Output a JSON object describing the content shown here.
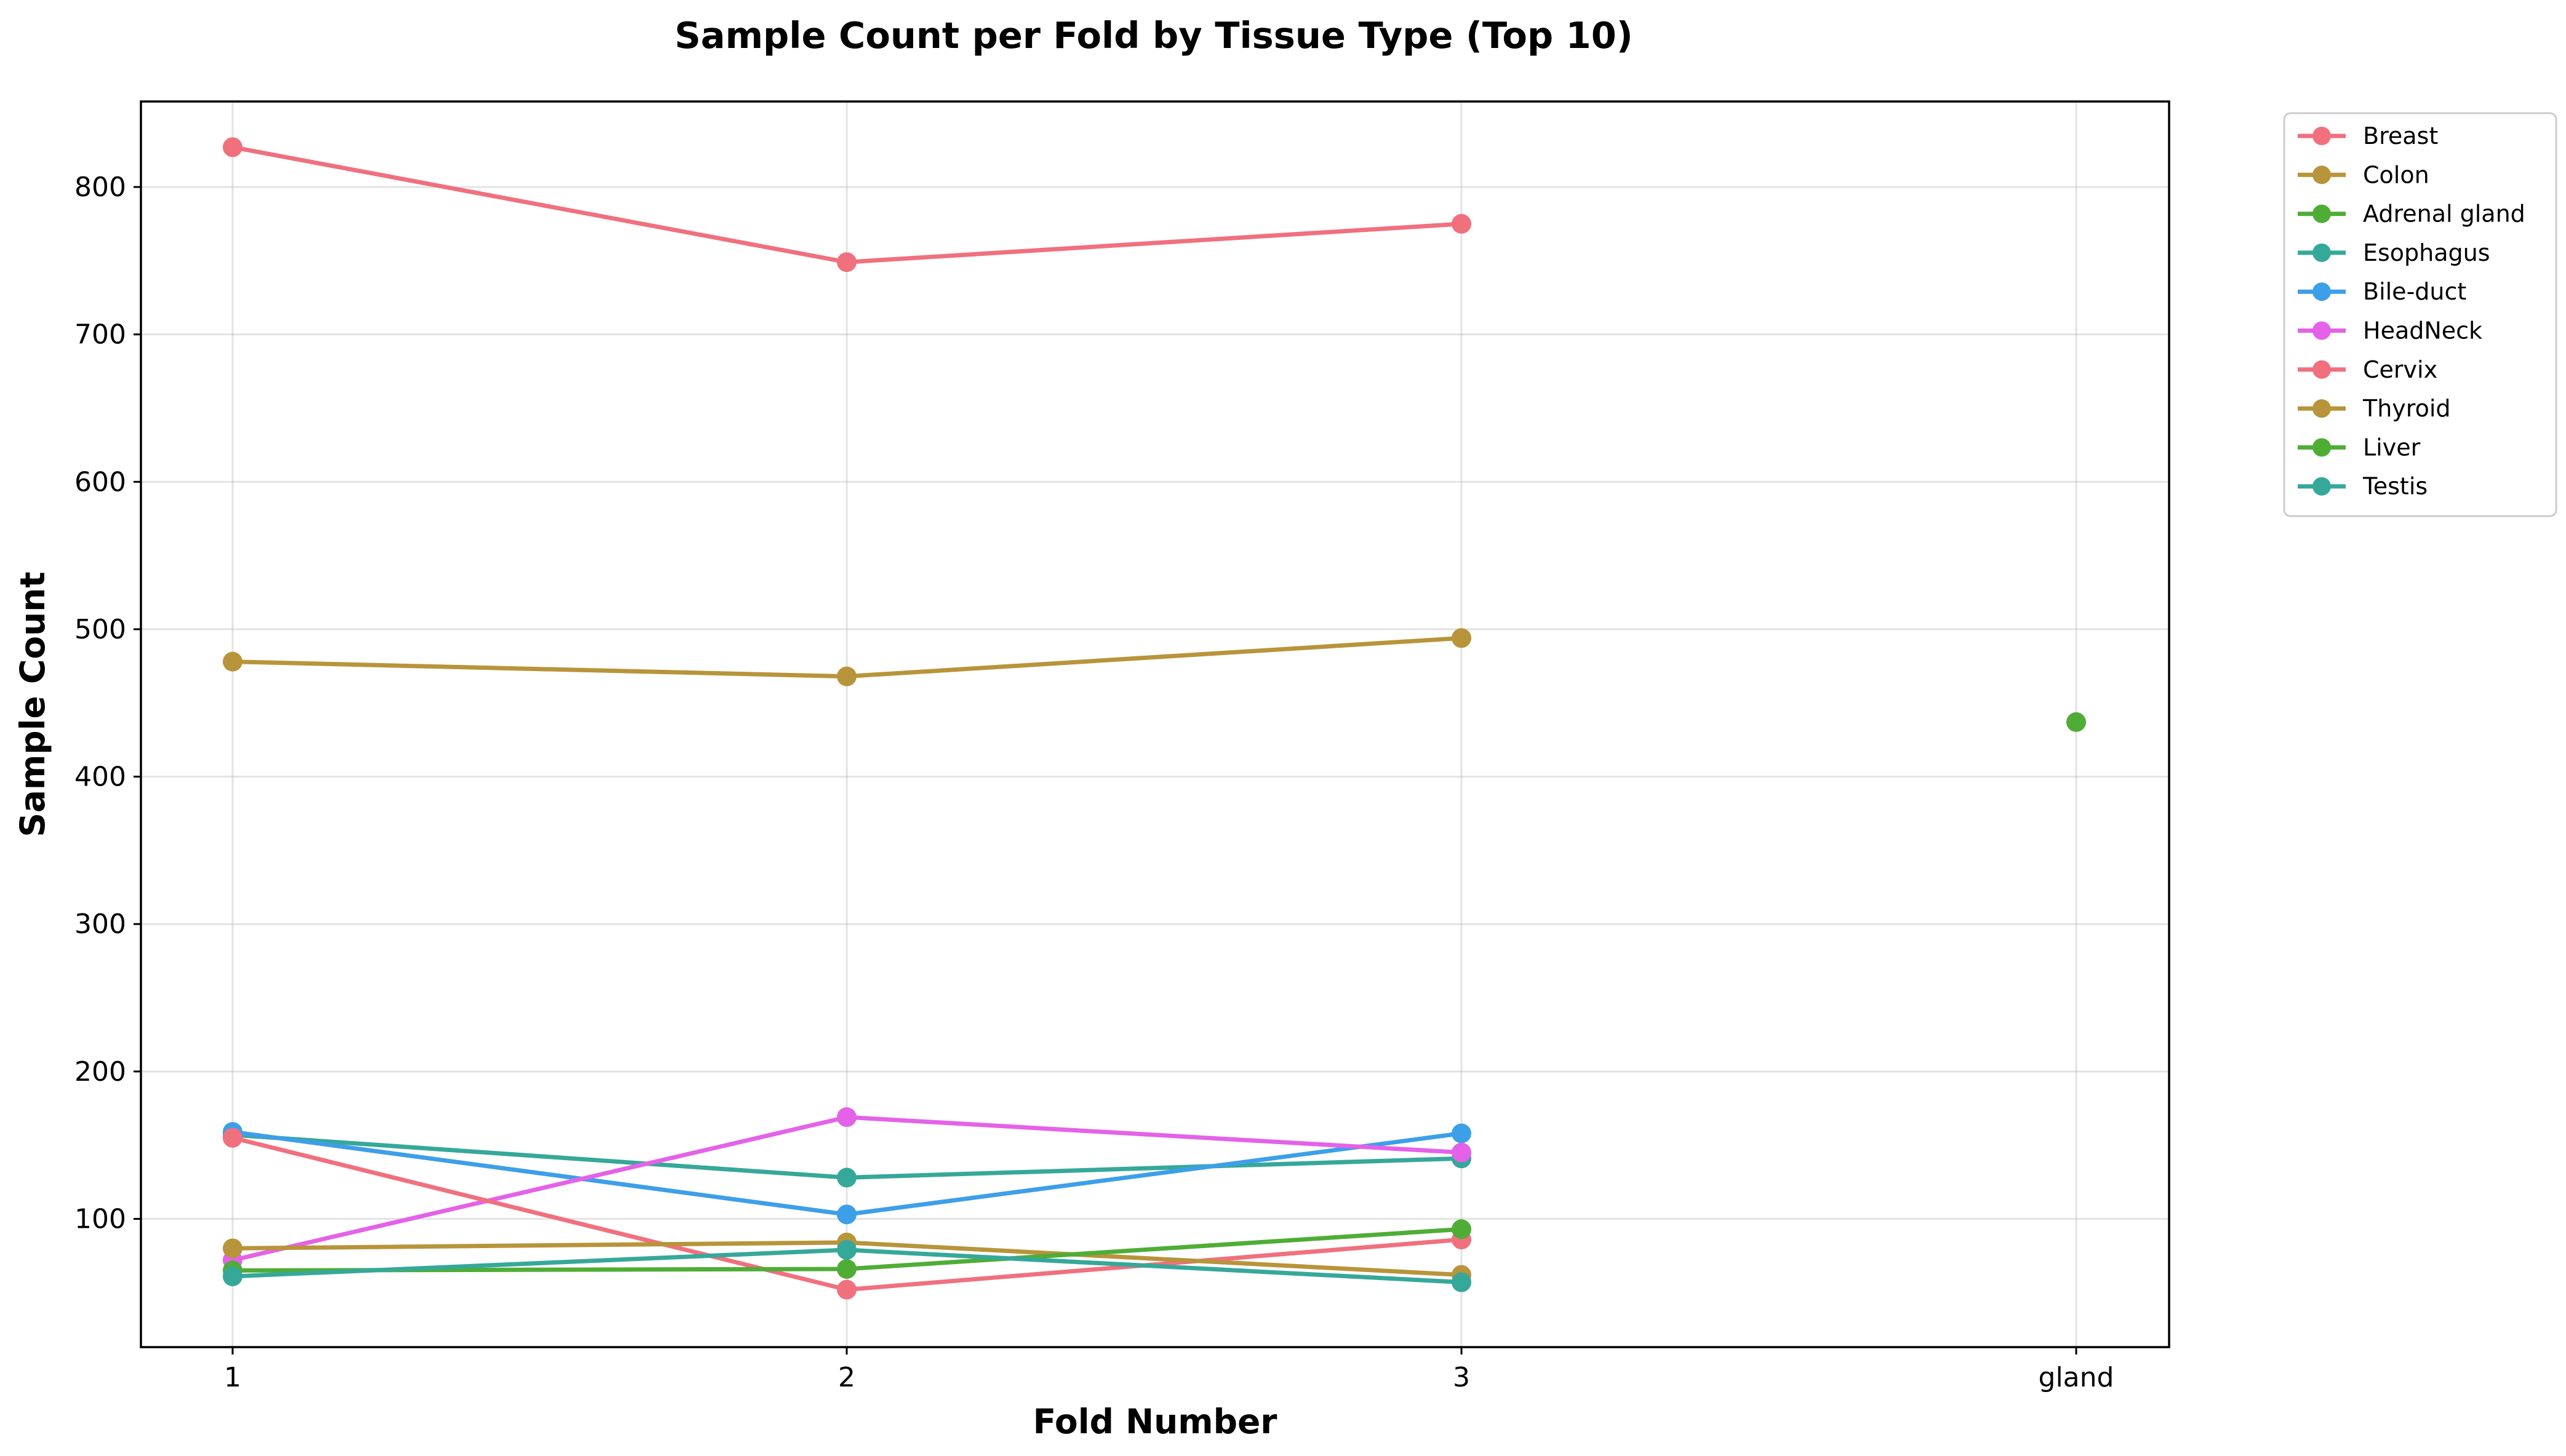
{
  "chart_data": {
    "type": "line",
    "title": "Sample Count per Fold by Tissue Type (Top 10)",
    "xlabel": "Fold Number",
    "ylabel": "Sample Count",
    "x_categories": [
      "1",
      "2",
      "3",
      "gland"
    ],
    "ylim": [
      13,
      858
    ],
    "yticks": [
      100,
      200,
      300,
      400,
      500,
      600,
      700,
      800
    ],
    "grid": true,
    "legend_position": "outside-top-right",
    "series": [
      {
        "name": "Breast",
        "color": "#f0707e",
        "points": [
          {
            "x": "1",
            "y": 827
          },
          {
            "x": "2",
            "y": 749
          },
          {
            "x": "3",
            "y": 775
          }
        ]
      },
      {
        "name": "Colon",
        "color": "#b8943a",
        "points": [
          {
            "x": "1",
            "y": 478
          },
          {
            "x": "2",
            "y": 468
          },
          {
            "x": "3",
            "y": 494
          }
        ]
      },
      {
        "name": "Adrenal gland",
        "color": "#4fad36",
        "points": [
          {
            "x": "gland",
            "y": 437
          }
        ]
      },
      {
        "name": "Esophagus",
        "color": "#36a89a",
        "points": [
          {
            "x": "1",
            "y": 157
          },
          {
            "x": "2",
            "y": 128
          },
          {
            "x": "3",
            "y": 141
          }
        ]
      },
      {
        "name": "Bile-duct",
        "color": "#3d9fe8",
        "points": [
          {
            "x": "1",
            "y": 159
          },
          {
            "x": "2",
            "y": 103
          },
          {
            "x": "3",
            "y": 158
          }
        ]
      },
      {
        "name": "HeadNeck",
        "color": "#e462e8",
        "points": [
          {
            "x": "1",
            "y": 72
          },
          {
            "x": "2",
            "y": 169
          },
          {
            "x": "3",
            "y": 145
          }
        ]
      },
      {
        "name": "Cervix",
        "color": "#f0707e",
        "points": [
          {
            "x": "1",
            "y": 155
          },
          {
            "x": "2",
            "y": 52
          },
          {
            "x": "3",
            "y": 86
          }
        ]
      },
      {
        "name": "Thyroid",
        "color": "#b8943a",
        "points": [
          {
            "x": "1",
            "y": 80
          },
          {
            "x": "2",
            "y": 84
          },
          {
            "x": "3",
            "y": 62
          }
        ]
      },
      {
        "name": "Liver",
        "color": "#4fad36",
        "points": [
          {
            "x": "1",
            "y": 65
          },
          {
            "x": "2",
            "y": 66
          },
          {
            "x": "3",
            "y": 93
          }
        ]
      },
      {
        "name": "Testis",
        "color": "#36a89a",
        "points": [
          {
            "x": "1",
            "y": 61
          },
          {
            "x": "2",
            "y": 79
          },
          {
            "x": "3",
            "y": 57
          }
        ]
      }
    ]
  }
}
